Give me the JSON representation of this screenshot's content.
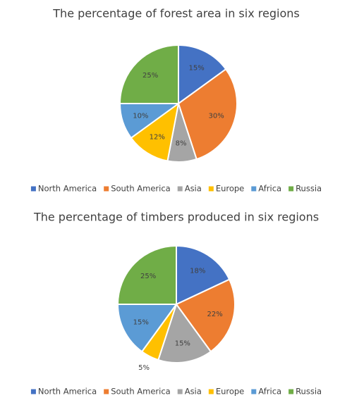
{
  "chart_data": [
    {
      "type": "pie",
      "title": "The percentage of forest area in six regions",
      "categories": [
        "North America",
        "South America",
        "Asia",
        "Europe",
        "Africa",
        "Russia"
      ],
      "values": [
        15,
        30,
        8,
        12,
        10,
        25
      ],
      "value_labels": [
        "15%",
        "30%",
        "8%",
        "12%",
        "10%",
        "25%"
      ],
      "colors": [
        "#4472c4",
        "#ed7d31",
        "#a5a5a5",
        "#ffc000",
        "#5b9bd5",
        "#70ad47"
      ],
      "legend": "bottom"
    },
    {
      "type": "pie",
      "title": "The percentage of timbers produced in six regions",
      "categories": [
        "North America",
        "South America",
        "Asia",
        "Europe",
        "Africa",
        "Russia"
      ],
      "values": [
        18,
        22,
        15,
        5,
        15,
        25
      ],
      "value_labels": [
        "18%",
        "22%",
        "15%",
        "5%",
        "15%",
        "25%"
      ],
      "colors": [
        "#4472c4",
        "#ed7d31",
        "#a5a5a5",
        "#ffc000",
        "#5b9bd5",
        "#70ad47"
      ],
      "legend": "bottom"
    }
  ]
}
